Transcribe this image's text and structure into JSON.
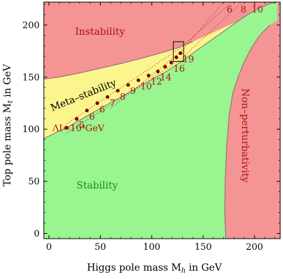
{
  "chart_data": {
    "type": "area",
    "xlabel": "Higgs pole mass M",
    "xlabel_sub": "h",
    "xlabel_unit": " in GeV",
    "ylabel": "Top pole mass M",
    "ylabel_sub": "t",
    "ylabel_unit": " in GeV",
    "xlim": [
      -5,
      225
    ],
    "ylim": [
      -5,
      222
    ],
    "x_ticks": [
      0,
      50,
      100,
      150,
      200
    ],
    "y_ticks": [
      0,
      50,
      100,
      150,
      200
    ],
    "colors": {
      "instability": "#f49494",
      "metastability": "#fbf58e",
      "stability": "#98f590",
      "nonperturbativity": "#f49494",
      "boundary": "#8a6a6a",
      "points": "#7a0000",
      "dotted": "#b03030",
      "labels": "#b01010"
    },
    "regions": {
      "instability_label": "Instability",
      "metastability_label": "Meta–stability",
      "stability_label": "Stability",
      "nonperturbativity_label": "Non–perturbativity"
    },
    "stability_boundary": {
      "x": [
        -5,
        20,
        40,
        60,
        80,
        100,
        115,
        125,
        135,
        145,
        155,
        165,
        175,
        185,
        195,
        205,
        215,
        222
      ],
      "y": [
        91,
        103,
        114.5,
        125.5,
        136.5,
        147.5,
        156,
        162.5,
        169.5,
        176.5,
        183.5,
        190.5,
        197.5,
        204.5,
        211,
        216.5,
        220.5,
        222
      ]
    },
    "metastability_boundary": {
      "x": [
        -5,
        10,
        30,
        50,
        70,
        90,
        110,
        125,
        140
      ],
      "y": [
        148,
        150,
        154,
        158.5,
        163,
        168,
        173.5,
        178,
        184
      ]
    },
    "nonperturbativity_boundary": {
      "x": [
        225,
        172,
        171,
        171.5,
        173,
        175.5,
        179,
        184,
        190,
        197,
        205,
        215,
        225
      ],
      "y": [
        -5,
        -5,
        20,
        50,
        85,
        115,
        135,
        150,
        165,
        178,
        190,
        200,
        206
      ]
    },
    "cutoff_points": [
      {
        "x": 17,
        "y": 101.5,
        "label": "ΛI=10⁴GeV"
      },
      {
        "x": 27,
        "y": 110,
        "label": "5"
      },
      {
        "x": 37,
        "y": 118,
        "label": "6"
      },
      {
        "x": 47,
        "y": 125,
        "label": "6"
      },
      {
        "x": 57,
        "y": 131,
        "label": "7"
      },
      {
        "x": 67,
        "y": 137,
        "label": "8"
      },
      {
        "x": 77,
        "y": 142.5,
        "label": "9"
      },
      {
        "x": 87,
        "y": 147,
        "label": "10"
      },
      {
        "x": 97,
        "y": 151.5,
        "label": "12"
      },
      {
        "x": 106,
        "y": 155.5,
        "label": "14"
      },
      {
        "x": 113,
        "y": 160,
        "label": ""
      },
      {
        "x": 119,
        "y": 164,
        "label": "16"
      },
      {
        "x": 124,
        "y": 169,
        "label": ""
      },
      {
        "x": 128,
        "y": 173,
        "label": "19"
      }
    ],
    "dotted_lines": [
      {
        "x": [
          17,
          128,
          188
        ],
        "y": [
          96,
          167,
          222
        ]
      },
      {
        "x": [
          17,
          128,
          178
        ],
        "y": [
          105,
          178,
          222
        ]
      },
      {
        "x": [
          60,
          130,
          170
        ],
        "y": [
          120,
          176,
          222
        ]
      }
    ],
    "top_labels": [
      "6",
      "8",
      "10"
    ],
    "highlight_box": {
      "x": [
        121,
        131
      ],
      "y": [
        165,
        184
      ]
    }
  }
}
